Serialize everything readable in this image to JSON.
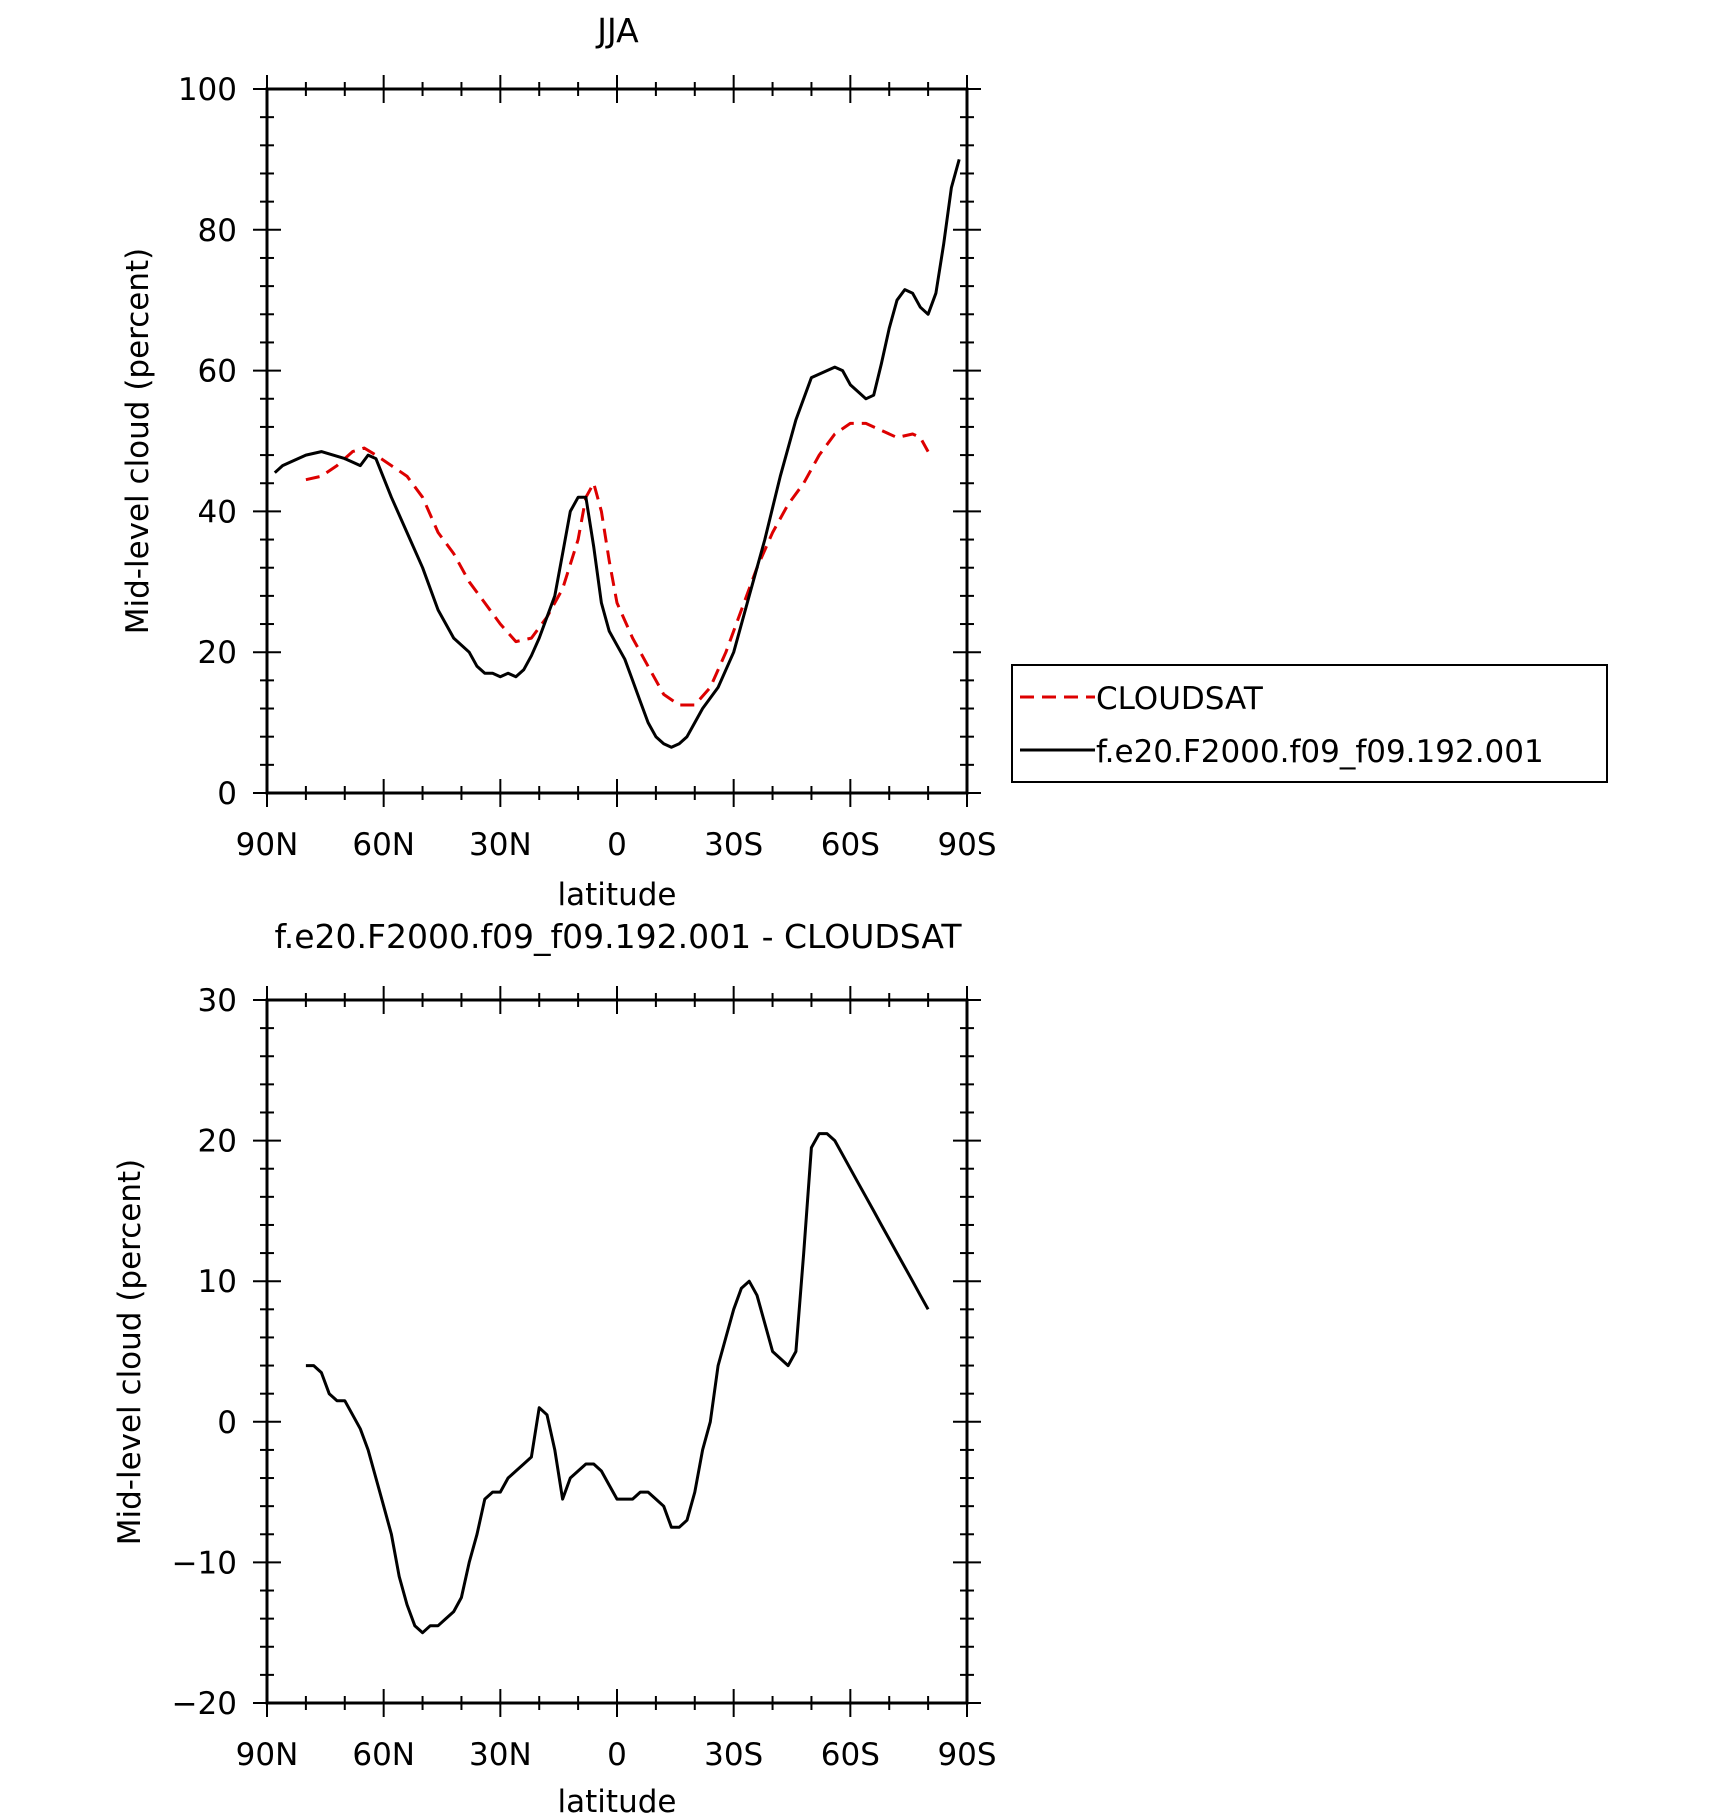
{
  "chart_data": [
    {
      "type": "line",
      "title": "JJA",
      "xlabel": "latitude",
      "ylabel": "Mid-level cloud (percent)",
      "xlim": [
        90,
        -90
      ],
      "ylim": [
        0,
        100
      ],
      "xtick_values": [
        90,
        60,
        30,
        0,
        -30,
        -60,
        -90
      ],
      "xtick_labels": [
        "90N",
        "60N",
        "30N",
        "0",
        "30S",
        "60S",
        "90S"
      ],
      "ytick_values": [
        0,
        20,
        40,
        60,
        80,
        100
      ],
      "ytick_labels": [
        "0",
        "20",
        "40",
        "60",
        "80",
        "100"
      ],
      "grid": false,
      "legend_position": "right",
      "series": [
        {
          "name": "CLOUDSAT",
          "color": "#dd0000",
          "dash": "dashed",
          "x": [
            80,
            76,
            72,
            68,
            65,
            62,
            58,
            54,
            50,
            46,
            42,
            38,
            34,
            30,
            26,
            22,
            18,
            14,
            10,
            8,
            6,
            4,
            2,
            0,
            -4,
            -8,
            -12,
            -16,
            -20,
            -24,
            -28,
            -32,
            -36,
            -40,
            -44,
            -48,
            -52,
            -56,
            -60,
            -64,
            -68,
            -72,
            -76,
            -78,
            -80
          ],
          "y": [
            44.5,
            45,
            46.5,
            48.5,
            49,
            48,
            46.5,
            45,
            42,
            37,
            34,
            30,
            27,
            24,
            21.5,
            22,
            25,
            29,
            36,
            42,
            44,
            40,
            33,
            27,
            22,
            18,
            14,
            12.5,
            12.5,
            15,
            20,
            26,
            32,
            37,
            41,
            44,
            48,
            51,
            52.5,
            52.5,
            51.5,
            50.5,
            51,
            50.5,
            48.5
          ]
        },
        {
          "name": "f.e20.F2000.f09_f09.192.001",
          "color": "#000000",
          "dash": "solid",
          "x": [
            88,
            86,
            84,
            80,
            76,
            73,
            70,
            68,
            66,
            64,
            62,
            58,
            54,
            50,
            46,
            42,
            38,
            36,
            34,
            32,
            30,
            28,
            26,
            24,
            22,
            20,
            18,
            16,
            14,
            12,
            10,
            8,
            6,
            4,
            2,
            0,
            -2,
            -4,
            -6,
            -8,
            -10,
            -12,
            -14,
            -16,
            -18,
            -20,
            -22,
            -26,
            -30,
            -34,
            -38,
            -42,
            -46,
            -50,
            -54,
            -56,
            -58,
            -60,
            -62,
            -64,
            -66,
            -68,
            -70,
            -72,
            -74,
            -76,
            -78,
            -80,
            -82,
            -84,
            -86,
            -88
          ],
          "y": [
            45.5,
            46.5,
            47,
            48,
            48.5,
            48,
            47.5,
            47,
            46.5,
            48,
            47.5,
            42,
            37,
            32,
            26,
            22,
            20,
            18,
            17,
            17,
            16.5,
            17,
            16.5,
            17.5,
            19.5,
            22,
            25,
            28,
            34,
            40,
            42,
            42,
            35,
            27,
            23,
            21,
            19,
            16,
            13,
            10,
            8,
            7,
            6.5,
            7,
            8,
            10,
            12,
            15,
            20,
            28,
            36,
            45,
            53,
            59,
            60,
            60.5,
            60,
            58,
            57,
            56,
            56.5,
            61,
            66,
            70,
            71.5,
            71,
            69,
            68,
            71,
            78,
            86,
            90
          ]
        }
      ]
    },
    {
      "type": "line",
      "title": "f.e20.F2000.f09_f09.192.001 - CLOUDSAT",
      "xlabel": "latitude",
      "ylabel": "Mid-level cloud (percent)",
      "xlim": [
        90,
        -90
      ],
      "ylim": [
        -20,
        30
      ],
      "xtick_values": [
        90,
        60,
        30,
        0,
        -30,
        -60,
        -90
      ],
      "xtick_labels": [
        "90N",
        "60N",
        "30N",
        "0",
        "30S",
        "60S",
        "90S"
      ],
      "ytick_values": [
        -20,
        -10,
        0,
        10,
        20,
        30
      ],
      "ytick_labels": [
        "-20",
        "-10",
        "0",
        "10",
        "20",
        "30"
      ],
      "grid": false,
      "series": [
        {
          "color": "#000000",
          "dash": "solid",
          "x": [
            80,
            78,
            76,
            74,
            72,
            70,
            68,
            66,
            64,
            62,
            60,
            58,
            56,
            54,
            52,
            50,
            48,
            46,
            44,
            42,
            40,
            38,
            36,
            34,
            32,
            30,
            28,
            26,
            24,
            22,
            20,
            18,
            16,
            14,
            12,
            10,
            8,
            6,
            4,
            2,
            0,
            -2,
            -4,
            -6,
            -8,
            -10,
            -12,
            -14,
            -16,
            -18,
            -20,
            -22,
            -24,
            -26,
            -28,
            -30,
            -32,
            -34,
            -36,
            -38,
            -40,
            -42,
            -44,
            -46,
            -48,
            -50,
            -52,
            -54,
            -56,
            -58,
            -60,
            -62,
            -64,
            -66,
            -68,
            -70,
            -72,
            -74,
            -76,
            -78,
            -80
          ],
          "y": [
            4,
            4,
            3.5,
            2,
            1.5,
            1.5,
            0.5,
            -0.5,
            -2,
            -4,
            -6,
            -8,
            -11,
            -13,
            -14.5,
            -15,
            -14.5,
            -14.5,
            -14,
            -13.5,
            -12.5,
            -10,
            -8,
            -5.5,
            -5,
            -5,
            -4,
            -3.5,
            -3,
            -2.5,
            1,
            0.5,
            -2,
            -5.5,
            -4,
            -3.5,
            -3,
            -3,
            -3.5,
            -4.5,
            -5.5,
            -5.5,
            -5.5,
            -5,
            -5,
            -5.5,
            -6,
            -7.5,
            -7.5,
            -7,
            -5,
            -2,
            0,
            4,
            6,
            8,
            9.5,
            10,
            9,
            7,
            5,
            4.5,
            4,
            5,
            12,
            19.5,
            20.5,
            20.5,
            20,
            19,
            18,
            17,
            16,
            15,
            14,
            13,
            12,
            11,
            10,
            9,
            8
          ]
        }
      ]
    }
  ]
}
